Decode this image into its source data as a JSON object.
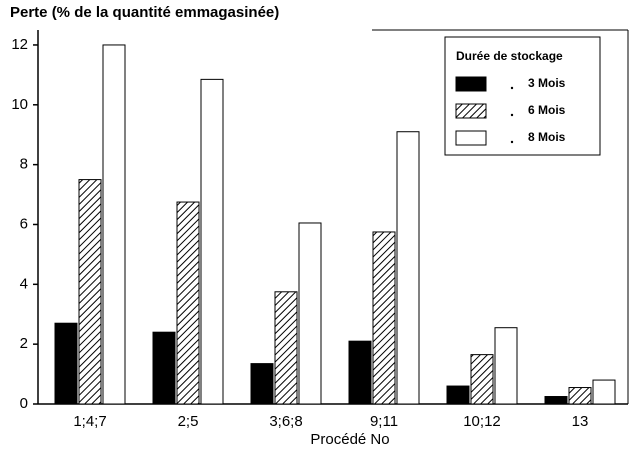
{
  "chart_data": {
    "type": "bar",
    "title": "Perte (% de la quantité emmagasinée)",
    "x_label": "Procédé No",
    "legend_title": "Durée de stockage",
    "legend_position": "upper right",
    "categories": [
      "1;4;7",
      "2;5",
      "3;6;8",
      "9;11",
      "10;12",
      "13"
    ],
    "series": [
      {
        "name": "3 Mois",
        "color": "#000000",
        "pattern": "solid",
        "values": [
          2.7,
          2.4,
          1.35,
          2.1,
          0.6,
          0.25
        ]
      },
      {
        "name": "6 Mois",
        "color": "#000000",
        "pattern": "hatch",
        "values": [
          7.5,
          6.75,
          3.75,
          5.75,
          1.65,
          0.55
        ]
      },
      {
        "name": "8 Mois",
        "color": "#ffffff",
        "pattern": "solid",
        "values": [
          12.0,
          10.85,
          6.05,
          9.1,
          2.55,
          0.8
        ]
      }
    ],
    "ylim": [
      0,
      12.5
    ],
    "yticks": [
      0,
      2,
      4,
      6,
      8,
      10,
      12
    ]
  }
}
